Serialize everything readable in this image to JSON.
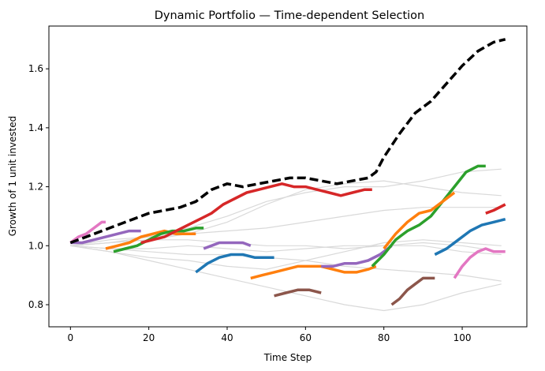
{
  "chart_data": {
    "type": "line",
    "title": "Dynamic Portfolio — Time-dependent Selection",
    "xlabel": "Time Step",
    "ylabel": "Growth of 1 unit invested",
    "xlim": [
      -5.5,
      116.5
    ],
    "ylim": [
      0.725,
      1.745
    ],
    "xticks": [
      0,
      20,
      40,
      60,
      80,
      100
    ],
    "yticks": [
      0.8,
      1.0,
      1.2,
      1.4,
      1.6
    ],
    "grid": false,
    "legend": "none",
    "background_series": {
      "color": "#d9d9d9",
      "series": [
        {
          "x": [
            0,
            10,
            20,
            30,
            40,
            50,
            60,
            70,
            80,
            90,
            100,
            110
          ],
          "y": [
            1.0,
            0.99,
            0.98,
            0.97,
            0.97,
            0.96,
            0.95,
            0.93,
            0.92,
            0.91,
            0.9,
            0.88
          ]
        },
        {
          "x": [
            0,
            10,
            20,
            30,
            40,
            50,
            60,
            70,
            80,
            90,
            100,
            110
          ],
          "y": [
            1.0,
            0.98,
            0.96,
            0.95,
            0.93,
            0.92,
            0.95,
            0.98,
            1.01,
            1.02,
            1.01,
            1.0
          ]
        },
        {
          "x": [
            0,
            10,
            20,
            30,
            40,
            50,
            60,
            70,
            80,
            90,
            100,
            110
          ],
          "y": [
            1.0,
            0.99,
            0.99,
            1.0,
            0.99,
            0.98,
            0.99,
            1.0,
            1.0,
            1.0,
            0.98,
            0.97
          ]
        },
        {
          "x": [
            0,
            10,
            20,
            30,
            40,
            50,
            60,
            70,
            80,
            90,
            100,
            110
          ],
          "y": [
            1.0,
            1.01,
            1.02,
            1.02,
            1.01,
            1.0,
            1.0,
            0.99,
            1.0,
            1.01,
            1.0,
            0.98
          ]
        },
        {
          "x": [
            0,
            10,
            20,
            30,
            40,
            50,
            60,
            70,
            80,
            90,
            100,
            110
          ],
          "y": [
            1.0,
            0.98,
            0.95,
            0.92,
            0.89,
            0.86,
            0.83,
            0.8,
            0.78,
            0.8,
            0.84,
            0.87
          ]
        },
        {
          "x": [
            0,
            10,
            20,
            30,
            40,
            50,
            60,
            70,
            80,
            90,
            100,
            110
          ],
          "y": [
            1.0,
            1.01,
            1.02,
            1.04,
            1.08,
            1.14,
            1.19,
            1.21,
            1.22,
            1.2,
            1.18,
            1.17
          ]
        },
        {
          "x": [
            0,
            10,
            20,
            30,
            40,
            50,
            60,
            70,
            80,
            90,
            100,
            110
          ],
          "y": [
            1.0,
            1.01,
            1.03,
            1.06,
            1.1,
            1.15,
            1.18,
            1.2,
            1.2,
            1.22,
            1.25,
            1.26
          ]
        },
        {
          "x": [
            0,
            10,
            20,
            30,
            40,
            50,
            60,
            70,
            80,
            90,
            100,
            110
          ],
          "y": [
            1.0,
            1.02,
            1.03,
            1.04,
            1.05,
            1.06,
            1.08,
            1.1,
            1.12,
            1.13,
            1.13,
            1.13
          ]
        }
      ]
    },
    "segments": [
      {
        "color": "#e377c2",
        "x": [
          0,
          2,
          4,
          6,
          8,
          9
        ],
        "y": [
          1.01,
          1.03,
          1.04,
          1.06,
          1.08,
          1.08
        ]
      },
      {
        "color": "#9467bd",
        "x": [
          0,
          3,
          6,
          9,
          12,
          15,
          18
        ],
        "y": [
          1.01,
          1.01,
          1.02,
          1.03,
          1.04,
          1.05,
          1.05
        ]
      },
      {
        "color": "#ff7f0e",
        "x": [
          9,
          12,
          15,
          18,
          21,
          24,
          27,
          30,
          32
        ],
        "y": [
          0.99,
          1.0,
          1.01,
          1.03,
          1.04,
          1.05,
          1.04,
          1.04,
          1.04
        ]
      },
      {
        "color": "#2ca02c",
        "x": [
          11,
          14,
          17,
          20,
          23,
          26,
          29,
          32,
          34
        ],
        "y": [
          0.98,
          0.99,
          1.0,
          1.02,
          1.04,
          1.05,
          1.05,
          1.06,
          1.06
        ]
      },
      {
        "color": "#d62728",
        "x": [
          18,
          21,
          24,
          27,
          30,
          33,
          36,
          39,
          42,
          45,
          48,
          51,
          54,
          57,
          60,
          63,
          66,
          69,
          72,
          75,
          77
        ],
        "y": [
          1.01,
          1.02,
          1.03,
          1.05,
          1.07,
          1.09,
          1.11,
          1.14,
          1.16,
          1.18,
          1.19,
          1.2,
          1.21,
          1.2,
          1.2,
          1.19,
          1.18,
          1.17,
          1.18,
          1.19,
          1.19
        ]
      },
      {
        "color": "#9467bd",
        "x": [
          34,
          36,
          38,
          40,
          42,
          44,
          46
        ],
        "y": [
          0.99,
          1.0,
          1.01,
          1.01,
          1.01,
          1.01,
          1.0
        ]
      },
      {
        "color": "#1f77b4",
        "x": [
          32,
          35,
          38,
          41,
          44,
          47,
          50,
          52
        ],
        "y": [
          0.91,
          0.94,
          0.96,
          0.97,
          0.97,
          0.96,
          0.96,
          0.96
        ]
      },
      {
        "color": "#ff7f0e",
        "x": [
          46,
          49,
          52,
          55,
          58,
          61,
          64,
          67,
          70,
          73,
          76,
          78
        ],
        "y": [
          0.89,
          0.9,
          0.91,
          0.92,
          0.93,
          0.93,
          0.93,
          0.92,
          0.91,
          0.91,
          0.92,
          0.93
        ]
      },
      {
        "color": "#8c564b",
        "x": [
          52,
          55,
          58,
          61,
          64
        ],
        "y": [
          0.83,
          0.84,
          0.85,
          0.85,
          0.84
        ]
      },
      {
        "color": "#9467bd",
        "x": [
          64,
          67,
          70,
          73,
          76,
          79,
          82
        ],
        "y": [
          0.93,
          0.93,
          0.94,
          0.94,
          0.95,
          0.97,
          1.0
        ]
      },
      {
        "color": "#2ca02c",
        "x": [
          77,
          80,
          83,
          86,
          89,
          92,
          95,
          98,
          101,
          104,
          106
        ],
        "y": [
          0.93,
          0.97,
          1.02,
          1.05,
          1.07,
          1.1,
          1.15,
          1.2,
          1.25,
          1.27,
          1.27
        ]
      },
      {
        "color": "#ff7f0e",
        "x": [
          80,
          83,
          86,
          89,
          92,
          95,
          98
        ],
        "y": [
          0.99,
          1.04,
          1.08,
          1.11,
          1.12,
          1.15,
          1.18
        ]
      },
      {
        "color": "#8c564b",
        "x": [
          82,
          84,
          86,
          88,
          90,
          92,
          93
        ],
        "y": [
          0.8,
          0.82,
          0.85,
          0.87,
          0.89,
          0.89,
          0.89
        ]
      },
      {
        "color": "#1f77b4",
        "x": [
          93,
          96,
          99,
          102,
          105,
          108,
          111
        ],
        "y": [
          0.97,
          0.99,
          1.02,
          1.05,
          1.07,
          1.08,
          1.09
        ]
      },
      {
        "color": "#e377c2",
        "x": [
          98,
          100,
          102,
          104,
          106,
          108,
          111
        ],
        "y": [
          0.89,
          0.93,
          0.96,
          0.98,
          0.99,
          0.98,
          0.98
        ]
      },
      {
        "color": "#d62728",
        "x": [
          106,
          108,
          111
        ],
        "y": [
          1.11,
          1.12,
          1.14
        ]
      }
    ],
    "portfolio": {
      "color": "#000000",
      "style": "dashed",
      "x": [
        0,
        4,
        8,
        12,
        16,
        20,
        24,
        28,
        32,
        36,
        40,
        44,
        48,
        52,
        56,
        60,
        64,
        68,
        72,
        76,
        78,
        80,
        84,
        88,
        92,
        96,
        100,
        104,
        108,
        111
      ],
      "y": [
        1.01,
        1.03,
        1.05,
        1.07,
        1.09,
        1.11,
        1.12,
        1.13,
        1.15,
        1.19,
        1.21,
        1.2,
        1.21,
        1.22,
        1.23,
        1.23,
        1.22,
        1.21,
        1.22,
        1.23,
        1.25,
        1.3,
        1.38,
        1.45,
        1.49,
        1.55,
        1.61,
        1.66,
        1.69,
        1.7
      ]
    }
  }
}
